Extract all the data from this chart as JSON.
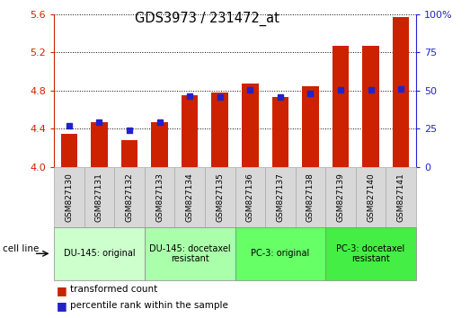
{
  "title": "GDS3973 / 231472_at",
  "categories": [
    "GSM827130",
    "GSM827131",
    "GSM827132",
    "GSM827133",
    "GSM827134",
    "GSM827135",
    "GSM827136",
    "GSM827137",
    "GSM827138",
    "GSM827139",
    "GSM827140",
    "GSM827141"
  ],
  "red_values": [
    4.35,
    4.47,
    4.28,
    4.47,
    4.75,
    4.78,
    4.87,
    4.73,
    4.85,
    5.27,
    5.27,
    5.57
  ],
  "blue_values": [
    4.43,
    4.47,
    4.38,
    4.47,
    4.74,
    4.73,
    4.81,
    4.73,
    4.77,
    4.81,
    4.81,
    4.82
  ],
  "ymin": 4.0,
  "ymax": 5.6,
  "yticks": [
    4.0,
    4.4,
    4.8,
    5.2,
    5.6
  ],
  "right_yticks_val": [
    0,
    25,
    50,
    75,
    100
  ],
  "right_yticks_label": [
    "0",
    "25",
    "50",
    "75",
    "100%"
  ],
  "bar_color": "#cc2200",
  "blue_color": "#2222cc",
  "left_axis_color": "#cc2200",
  "right_axis_color": "#2222cc",
  "background_color": "#ffffff",
  "groups": [
    {
      "label": "DU-145: original",
      "start": 0,
      "end": 3,
      "color": "#ccffcc"
    },
    {
      "label": "DU-145: docetaxel\nresistant",
      "start": 3,
      "end": 6,
      "color": "#aaffaa"
    },
    {
      "label": "PC-3: original",
      "start": 6,
      "end": 9,
      "color": "#66ff66"
    },
    {
      "label": "PC-3: docetaxel\nresistant",
      "start": 9,
      "end": 12,
      "color": "#44ee44"
    }
  ],
  "cell_line_label": "cell line",
  "legend_red": "transformed count",
  "legend_blue": "percentile rank within the sample"
}
